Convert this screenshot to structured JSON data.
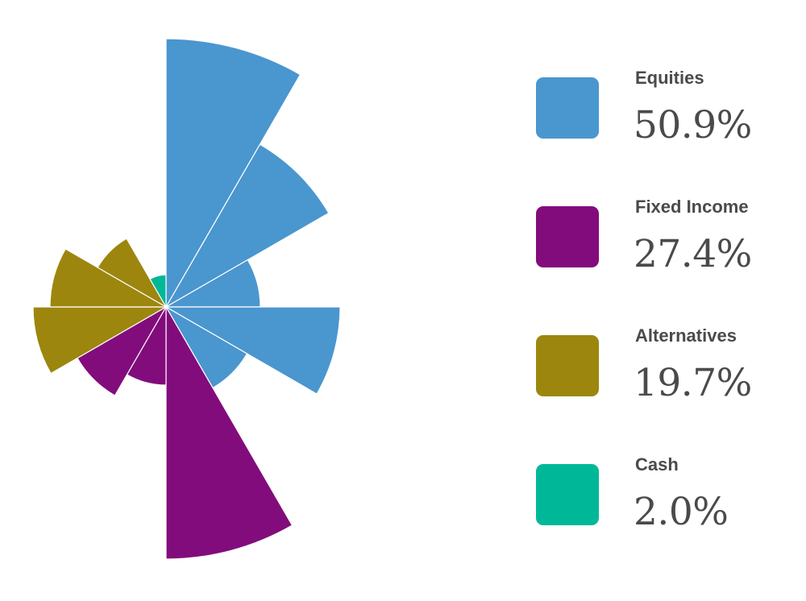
{
  "chart_data": {
    "type": "polar-area",
    "categories": [
      {
        "name": "Equities",
        "color": "#4a96cf",
        "value": "50.9%"
      },
      {
        "name": "Fixed Income",
        "color": "#820c7c",
        "value": "27.4%"
      },
      {
        "name": "Alternatives",
        "color": "#9c860e",
        "value": "19.7%"
      },
      {
        "name": "Cash",
        "color": "#00b898",
        "value": "2.0%"
      }
    ],
    "wedges": [
      {
        "category": "Equities",
        "radius": 333
      },
      {
        "category": "Equities",
        "radius": 233
      },
      {
        "category": "Equities",
        "radius": 117
      },
      {
        "category": "Equities",
        "radius": 216
      },
      {
        "category": "Equities",
        "radius": 116
      },
      {
        "category": "Fixed Income",
        "radius": 313
      },
      {
        "category": "Fixed Income",
        "radius": 97
      },
      {
        "category": "Fixed Income",
        "radius": 127
      },
      {
        "category": "Alternatives",
        "radius": 165
      },
      {
        "category": "Alternatives",
        "radius": 144
      },
      {
        "category": "Alternatives",
        "radius": 98
      },
      {
        "category": "Cash",
        "radius": 40
      }
    ]
  }
}
